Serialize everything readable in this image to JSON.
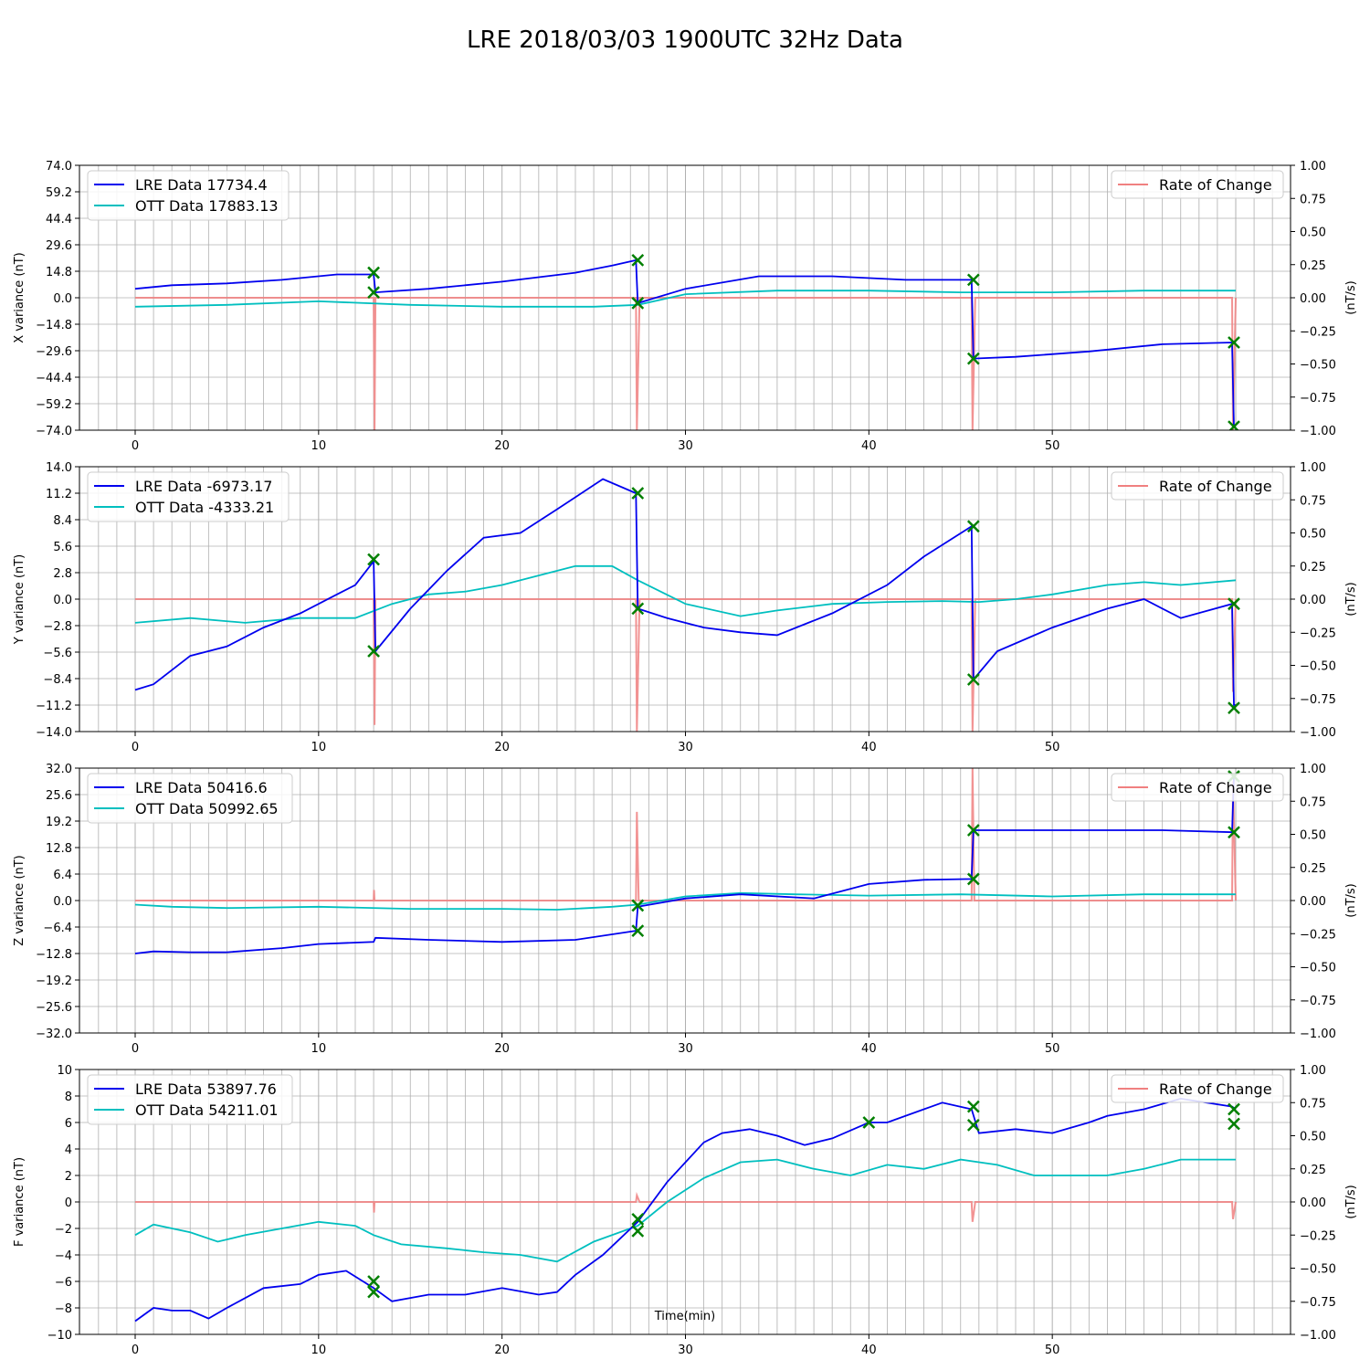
{
  "title": "LRE 2018/03/03 1900UTC 32Hz Data",
  "xlabel": "Time(min)",
  "colors": {
    "lre": "#0000ee",
    "ott": "#00bfbf",
    "rate": "#f08080",
    "marker": "#007f00",
    "grid": "#b0b0b0"
  },
  "chart_data": [
    {
      "type": "line",
      "ylabel": "X variance (nT)",
      "y2label": "(nT/s)",
      "ylim": [
        -74,
        74
      ],
      "y2lim": [
        -1,
        1
      ],
      "xlim": [
        0,
        60
      ],
      "yticks": [
        "74.0",
        "59.2",
        "44.4",
        "29.6",
        "14.8",
        "0.0",
        "−14.8",
        "−29.6",
        "−44.4",
        "−59.2",
        "−74.0"
      ],
      "y2ticks": [
        "1.00",
        "0.75",
        "0.50",
        "0.25",
        "0.00",
        "−0.25",
        "−0.50",
        "−0.75",
        "−1.00"
      ],
      "xticks": [
        "0",
        "10",
        "20",
        "30",
        "40",
        "50"
      ],
      "legend_left": [
        "LRE Data 17734.4",
        "OTT Data 17883.13"
      ],
      "legend_right": "Rate of Change",
      "series": [
        {
          "name": "LRE Data 17734.4",
          "x": [
            0,
            2,
            5,
            8,
            11,
            13,
            13.1,
            16,
            20,
            24,
            26,
            27.3,
            27.4,
            30,
            34,
            38,
            42,
            45.6,
            45.7,
            48,
            52,
            56,
            59.8,
            59.9,
            60
          ],
          "values": [
            5,
            7,
            8,
            10,
            13,
            13,
            3,
            5,
            9,
            14,
            18,
            21,
            -3,
            5,
            12,
            12,
            10,
            10,
            -34,
            -33,
            -30,
            -26,
            -25,
            -72,
            -72
          ]
        },
        {
          "name": "OTT Data 17883.13",
          "x": [
            0,
            5,
            10,
            15,
            20,
            25,
            27.4,
            30,
            35,
            40,
            45,
            50,
            55,
            60
          ],
          "values": [
            -5,
            -4,
            -2,
            -4,
            -5,
            -5,
            -4,
            2,
            4,
            4,
            3,
            3,
            4,
            4
          ]
        },
        {
          "name": "Rate of Change",
          "x": [
            0,
            13,
            13.05,
            13.1,
            27.3,
            27.35,
            27.5,
            45.6,
            45.65,
            45.8,
            59.8,
            59.85,
            60
          ],
          "values": [
            0,
            0,
            -1,
            0,
            0,
            -1,
            0,
            0,
            -1,
            0,
            0,
            -1,
            0
          ]
        }
      ],
      "markers": [
        [
          13,
          14
        ],
        [
          13,
          3
        ],
        [
          27.4,
          21
        ],
        [
          27.4,
          -3
        ],
        [
          45.7,
          10
        ],
        [
          45.7,
          -34
        ],
        [
          59.9,
          -25
        ],
        [
          59.9,
          -72
        ]
      ]
    },
    {
      "type": "line",
      "ylabel": "Y variance (nT)",
      "y2label": "(nT/s)",
      "ylim": [
        -14,
        14
      ],
      "y2lim": [
        -1,
        1
      ],
      "xlim": [
        0,
        60
      ],
      "yticks": [
        "14.0",
        "11.2",
        "8.4",
        "5.6",
        "2.8",
        "0.0",
        "−2.8",
        "−5.6",
        "−8.4",
        "−11.2",
        "−14.0"
      ],
      "y2ticks": [
        "1.00",
        "0.75",
        "0.50",
        "0.25",
        "0.00",
        "−0.25",
        "−0.50",
        "−0.75",
        "−1.00"
      ],
      "xticks": [
        "0",
        "10",
        "20",
        "30",
        "40",
        "50"
      ],
      "legend_left": [
        "LRE Data -6973.17",
        "OTT Data -4333.21"
      ],
      "legend_right": "Rate of Change",
      "series": [
        {
          "name": "LRE Data -6973.17",
          "x": [
            0,
            1,
            3,
            5,
            7,
            9,
            11,
            12,
            13,
            13.1,
            15,
            17,
            19,
            21,
            23,
            25.5,
            27.3,
            27.4,
            29,
            31,
            33,
            35,
            38,
            41,
            43,
            45.6,
            45.7,
            47,
            50,
            53,
            55,
            57,
            59.8,
            59.9,
            60
          ],
          "values": [
            -9.6,
            -9,
            -6,
            -5,
            -3,
            -1.5,
            0.5,
            1.5,
            4,
            -5.5,
            -1,
            3,
            6.5,
            7,
            9.5,
            12.7,
            11.2,
            -1,
            -2,
            -3,
            -3.5,
            -3.8,
            -1.5,
            1.5,
            4.5,
            7.7,
            -8.5,
            -5.5,
            -3,
            -1,
            0,
            -2,
            -0.5,
            -11.2,
            -11.2
          ]
        },
        {
          "name": "OTT Data -4333.21",
          "x": [
            0,
            3,
            6,
            9,
            12,
            14,
            16,
            18,
            20,
            22,
            24,
            26,
            27.4,
            30,
            33,
            35,
            38,
            41,
            44,
            46,
            48,
            50,
            53,
            55,
            57,
            60
          ],
          "values": [
            -2.5,
            -2,
            -2.5,
            -2,
            -2,
            -0.5,
            0.5,
            0.8,
            1.5,
            2.5,
            3.5,
            3.5,
            2,
            -0.5,
            -1.8,
            -1.2,
            -0.5,
            -0.3,
            -0.2,
            -0.3,
            0,
            0.5,
            1.5,
            1.8,
            1.5,
            2
          ]
        },
        {
          "name": "Rate of Change",
          "x": [
            0,
            13,
            13.05,
            13.1,
            27.3,
            27.35,
            27.5,
            45.6,
            45.65,
            45.8,
            59.8,
            59.85,
            60
          ],
          "values": [
            0,
            0,
            -0.95,
            0,
            0,
            -1,
            0,
            0,
            -1,
            0,
            0,
            -0.7,
            0
          ]
        }
      ],
      "markers": [
        [
          13,
          4.2
        ],
        [
          13,
          -5.5
        ],
        [
          27.4,
          11.2
        ],
        [
          27.4,
          -1
        ],
        [
          45.7,
          7.7
        ],
        [
          45.7,
          -8.5
        ],
        [
          59.9,
          -0.5
        ],
        [
          59.9,
          -11.5
        ]
      ]
    },
    {
      "type": "line",
      "ylabel": "Z variance (nT)",
      "y2label": "(nT/s)",
      "ylim": [
        -32,
        32
      ],
      "y2lim": [
        -1,
        1
      ],
      "xlim": [
        0,
        60
      ],
      "yticks": [
        "32.0",
        "25.6",
        "19.2",
        "12.8",
        "6.4",
        "0.0",
        "−6.4",
        "−12.8",
        "−19.2",
        "−25.6",
        "−32.0"
      ],
      "y2ticks": [
        "1.00",
        "0.75",
        "0.50",
        "0.25",
        "0.00",
        "−0.25",
        "−0.50",
        "−0.75",
        "−1.00"
      ],
      "xticks": [
        "0",
        "10",
        "20",
        "30",
        "40",
        "50"
      ],
      "legend_left": [
        "LRE Data 50416.6",
        "OTT Data 50992.65"
      ],
      "legend_right": "Rate of Change",
      "series": [
        {
          "name": "LRE Data 50416.6",
          "x": [
            0,
            1,
            3,
            5,
            8,
            10,
            13,
            13.1,
            16,
            20,
            24,
            27.3,
            27.4,
            30,
            33,
            37,
            40,
            43,
            45.6,
            45.7,
            48,
            52,
            56,
            59.8,
            59.9,
            60
          ],
          "values": [
            -12.8,
            -12.3,
            -12.5,
            -12.5,
            -11.5,
            -10.5,
            -10,
            -9,
            -9.5,
            -10,
            -9.5,
            -7.3,
            -1.5,
            0.5,
            1.5,
            0.5,
            4,
            5,
            5.2,
            17,
            17,
            17,
            17,
            16.5,
            30,
            30
          ]
        },
        {
          "name": "OTT Data 50992.65",
          "x": [
            0,
            2,
            5,
            10,
            15,
            20,
            23,
            26,
            27.4,
            30,
            33,
            36,
            40,
            45,
            50,
            55,
            60
          ],
          "values": [
            -1,
            -1.5,
            -1.8,
            -1.5,
            -2,
            -2,
            -2.2,
            -1.5,
            -1,
            1,
            1.8,
            1.5,
            1.2,
            1.5,
            1,
            1.5,
            1.5
          ]
        },
        {
          "name": "Rate of Change",
          "x": [
            0,
            13,
            13.02,
            13.05,
            27.3,
            27.35,
            27.45,
            45.6,
            45.65,
            45.75,
            59.8,
            59.85,
            60
          ],
          "values": [
            0,
            0,
            0.08,
            0,
            0,
            0.67,
            0,
            0,
            1,
            0,
            0,
            0.9,
            0
          ]
        }
      ],
      "markers": [
        [
          27.4,
          -7.3
        ],
        [
          27.4,
          -1.2
        ],
        [
          45.7,
          5.2
        ],
        [
          45.7,
          17
        ],
        [
          59.9,
          16.5
        ],
        [
          59.9,
          30
        ]
      ]
    },
    {
      "type": "line",
      "ylabel": "F variance (nT)",
      "y2label": "(nT/s)",
      "ylim": [
        -10,
        10
      ],
      "y2lim": [
        -1,
        1
      ],
      "xlim": [
        0,
        60
      ],
      "yticks": [
        "10",
        "8",
        "6",
        "4",
        "2",
        "0",
        "−2",
        "−4",
        "−6",
        "−8",
        "−10"
      ],
      "y2ticks": [
        "1.00",
        "0.75",
        "0.50",
        "0.25",
        "0.00",
        "−0.25",
        "−0.50",
        "−0.75",
        "−1.00"
      ],
      "xticks": [
        "0",
        "10",
        "20",
        "30",
        "40",
        "50"
      ],
      "legend_left": [
        "LRE Data 53897.76",
        "OTT Data 54211.01"
      ],
      "legend_right": "Rate of Change",
      "series": [
        {
          "name": "LRE Data 53897.76",
          "x": [
            0,
            1,
            2,
            3,
            4,
            5,
            7,
            9,
            10,
            11.5,
            13,
            14,
            16,
            18,
            20,
            22,
            23,
            24,
            25.5,
            27.4,
            29,
            31,
            32,
            33.5,
            35,
            36.5,
            38,
            40,
            41,
            43,
            44,
            45.6,
            46,
            48,
            50,
            52,
            53,
            55,
            57,
            59.8,
            60
          ],
          "values": [
            -9,
            -8,
            -8.2,
            -8.2,
            -8.8,
            -8,
            -6.5,
            -6.2,
            -5.5,
            -5.2,
            -6.5,
            -7.5,
            -7,
            -7,
            -6.5,
            -7,
            -6.8,
            -5.5,
            -4,
            -1.5,
            1.5,
            4.5,
            5.2,
            5.5,
            5,
            4.3,
            4.8,
            6,
            6,
            7,
            7.5,
            7,
            5.2,
            5.5,
            5.2,
            6,
            6.5,
            7,
            7.8,
            7.2,
            7
          ]
        },
        {
          "name": "OTT Data 54211.01",
          "x": [
            0,
            1,
            3,
            4.5,
            6,
            8,
            10,
            12,
            13,
            14.5,
            17,
            19,
            21,
            23,
            25,
            27.4,
            29,
            31,
            33,
            35,
            37,
            39,
            41,
            43,
            45,
            47,
            49,
            51,
            53,
            55,
            57,
            60
          ],
          "values": [
            -2.5,
            -1.7,
            -2.3,
            -3,
            -2.5,
            -2,
            -1.5,
            -1.8,
            -2.5,
            -3.2,
            -3.5,
            -3.8,
            -4,
            -4.5,
            -3,
            -1.8,
            0,
            1.8,
            3,
            3.2,
            2.5,
            2,
            2.8,
            2.5,
            3.2,
            2.8,
            2,
            2,
            2,
            2.5,
            3.2,
            3.2
          ]
        },
        {
          "name": "Rate of Change",
          "x": [
            0,
            13,
            13.02,
            13.05,
            27.3,
            27.35,
            27.5,
            45.6,
            45.65,
            45.8,
            59.8,
            59.85,
            60
          ],
          "values": [
            0,
            0,
            -0.08,
            0,
            0,
            0.05,
            0,
            0,
            -0.15,
            0,
            0,
            -0.13,
            0
          ]
        }
      ],
      "markers": [
        [
          13,
          -6
        ],
        [
          13,
          -6.8
        ],
        [
          27.4,
          -1.3
        ],
        [
          27.4,
          -2.2
        ],
        [
          40,
          6
        ],
        [
          45.7,
          7.2
        ],
        [
          45.7,
          5.8
        ],
        [
          59.9,
          7
        ],
        [
          59.9,
          5.9
        ]
      ]
    }
  ]
}
